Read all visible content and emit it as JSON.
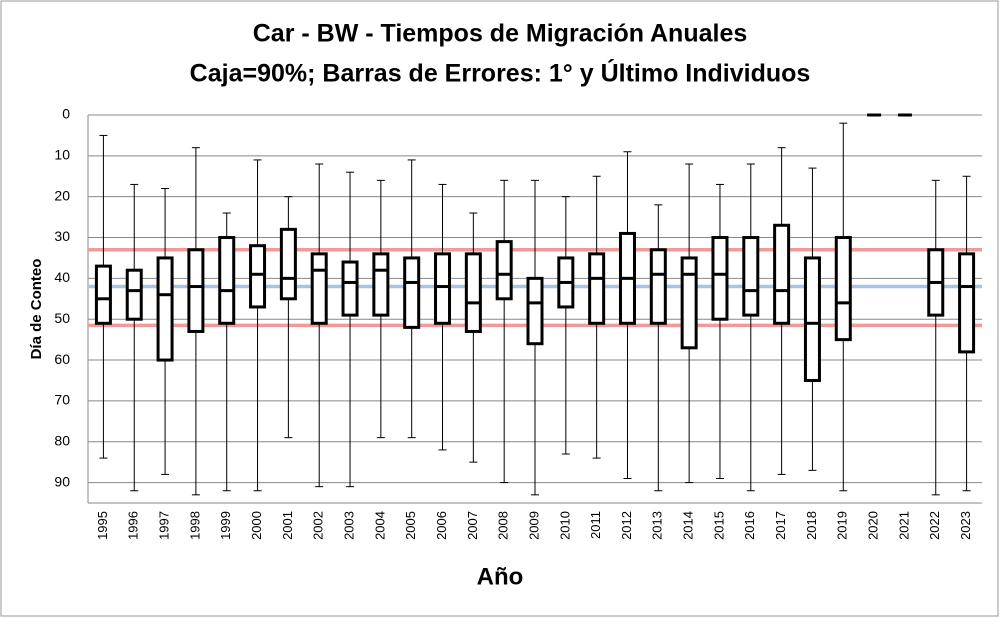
{
  "chart_data": {
    "type": "box",
    "title": "Car - BW - Tiempos de Migración Anuales",
    "subtitle": "Caja=90%; Barras de Errores: 1° y Último Individuos",
    "x_label": "Año",
    "y_label": "Día de Conteo",
    "categories": [
      "1995",
      "1996",
      "1997",
      "1998",
      "1999",
      "2000",
      "2001",
      "2002",
      "2003",
      "2004",
      "2005",
      "2006",
      "2007",
      "2008",
      "2009",
      "2010",
      "2011",
      "2012",
      "2013",
      "2014",
      "2015",
      "2016",
      "2017",
      "2018",
      "2019",
      "2020",
      "2021",
      "2022",
      "2023"
    ],
    "min": [
      5,
      17,
      18,
      8,
      24,
      11,
      20,
      12,
      14,
      16,
      11,
      17,
      24,
      16,
      16,
      20,
      15,
      9,
      22,
      12,
      17,
      12,
      8,
      13,
      2,
      0,
      0,
      16,
      15
    ],
    "q1": [
      37,
      38,
      35,
      33,
      30,
      32,
      28,
      34,
      36,
      34,
      35,
      34,
      34,
      31,
      40,
      35,
      34,
      29,
      33,
      35,
      30,
      30,
      27,
      35,
      30,
      0,
      0,
      33,
      34
    ],
    "median": [
      45,
      43,
      44,
      42,
      43,
      39,
      40,
      38,
      41,
      38,
      41,
      42,
      46,
      39,
      46,
      41,
      40,
      40,
      39,
      39,
      39,
      43,
      43,
      51,
      46,
      0,
      0,
      41,
      42
    ],
    "q3": [
      51,
      50,
      60,
      53,
      51,
      47,
      45,
      51,
      49,
      49,
      52,
      51,
      53,
      45,
      56,
      47,
      51,
      51,
      51,
      57,
      50,
      49,
      51,
      65,
      55,
      0,
      0,
      49,
      58
    ],
    "max": [
      84,
      92,
      88,
      93,
      92,
      92,
      79,
      91,
      91,
      79,
      79,
      82,
      85,
      90,
      93,
      83,
      84,
      89,
      92,
      90,
      89,
      92,
      88,
      87,
      92,
      0,
      0,
      93,
      92
    ],
    "color": "#000000",
    "reference_lines": [
      {
        "value": 33,
        "color": "#f19a9a"
      },
      {
        "value": 51.5,
        "color": "#f19a9a"
      },
      {
        "value": 42,
        "color": "#a9c3e4"
      }
    ],
    "ylim": [
      0,
      95
    ],
    "y_inverted": true,
    "yticks": [
      0,
      10,
      20,
      30,
      40,
      50,
      60,
      70,
      80,
      90
    ],
    "grid": true
  }
}
